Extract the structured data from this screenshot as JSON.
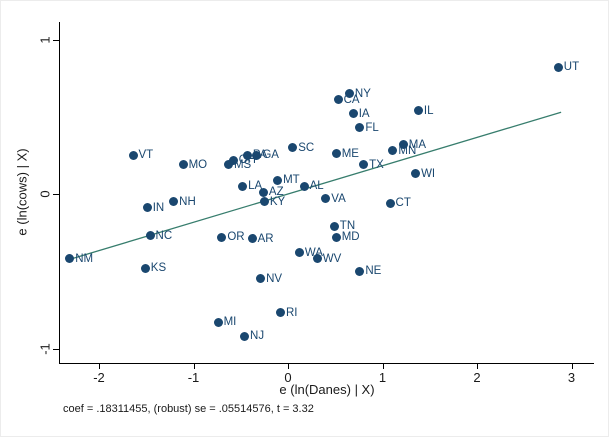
{
  "chart_data": {
    "type": "scatter",
    "title": "",
    "xlabel": "e (ln(Danes) | X)",
    "ylabel": "e (ln(cows) | X)",
    "note": "coef = .18311455, (robust) se = .05514576, t = 3.32",
    "xlim": [
      -2.42,
      3.26
    ],
    "ylim": [
      -1.09,
      1.15
    ],
    "x_ticks": [
      -2,
      -1,
      0,
      1,
      2,
      3
    ],
    "y_ticks": [
      -1,
      0,
      1
    ],
    "grid": false,
    "legend": "none",
    "marker_style": "filled-circle",
    "label_position": "right-of-marker",
    "colors": {
      "marker": "#1a476f",
      "marker_label": "#1a476f",
      "fit_line": "#377d6d",
      "axis": "#000000",
      "background": "#ffffff"
    },
    "fit_line": {
      "slope": 0.18311455,
      "intercept": 0,
      "x_start": -2.31,
      "x_end": 2.89,
      "coef_text": ".18311455",
      "robust_se_text": ".05514576",
      "t_text": "3.32"
    },
    "points": [
      {
        "label": "NM",
        "x": -2.31,
        "y": -0.42
      },
      {
        "label": "VT",
        "x": -1.64,
        "y": 0.25
      },
      {
        "label": "KS",
        "x": -1.51,
        "y": -0.48
      },
      {
        "label": "IN",
        "x": -1.49,
        "y": -0.09
      },
      {
        "label": "NC",
        "x": -1.46,
        "y": -0.27
      },
      {
        "label": "NH",
        "x": -1.21,
        "y": -0.05
      },
      {
        "label": "MO",
        "x": -1.11,
        "y": 0.19
      },
      {
        "label": "MI",
        "x": -0.74,
        "y": -0.83
      },
      {
        "label": "OR",
        "x": -0.7,
        "y": -0.28
      },
      {
        "label": "MS",
        "x": -0.63,
        "y": 0.19
      },
      {
        "label": "OH",
        "x": -0.58,
        "y": 0.22
      },
      {
        "label": "LA",
        "x": -0.48,
        "y": 0.05
      },
      {
        "label": "NJ",
        "x": -0.46,
        "y": -0.92
      },
      {
        "label": "PA",
        "x": -0.43,
        "y": 0.25
      },
      {
        "label": "AR",
        "x": -0.38,
        "y": -0.29
      },
      {
        "label": "GA",
        "x": -0.33,
        "y": 0.25
      },
      {
        "label": "NV",
        "x": -0.29,
        "y": -0.55
      },
      {
        "label": "AZ",
        "x": -0.26,
        "y": 0.01
      },
      {
        "label": "KY",
        "x": -0.25,
        "y": -0.05
      },
      {
        "label": "MT",
        "x": -0.11,
        "y": 0.09
      },
      {
        "label": "RI",
        "x": -0.08,
        "y": -0.77
      },
      {
        "label": "SC",
        "x": 0.05,
        "y": 0.3
      },
      {
        "label": "WA",
        "x": 0.12,
        "y": -0.38
      },
      {
        "label": "AL",
        "x": 0.17,
        "y": 0.05
      },
      {
        "label": "WV",
        "x": 0.31,
        "y": -0.42
      },
      {
        "label": "VA",
        "x": 0.4,
        "y": -0.03
      },
      {
        "label": "TN",
        "x": 0.49,
        "y": -0.21
      },
      {
        "label": "ME",
        "x": 0.51,
        "y": 0.26
      },
      {
        "label": "MD",
        "x": 0.51,
        "y": -0.28
      },
      {
        "label": "CA",
        "x": 0.53,
        "y": 0.61
      },
      {
        "label": "NY",
        "x": 0.65,
        "y": 0.65
      },
      {
        "label": "IA",
        "x": 0.69,
        "y": 0.52
      },
      {
        "label": "FL",
        "x": 0.76,
        "y": 0.43
      },
      {
        "label": "NE",
        "x": 0.76,
        "y": -0.5
      },
      {
        "label": "TX",
        "x": 0.8,
        "y": 0.19
      },
      {
        "label": "CT",
        "x": 1.08,
        "y": -0.06
      },
      {
        "label": "MN",
        "x": 1.11,
        "y": 0.28
      },
      {
        "label": "MA",
        "x": 1.22,
        "y": 0.32
      },
      {
        "label": "WI",
        "x": 1.35,
        "y": 0.13
      },
      {
        "label": "IL",
        "x": 1.38,
        "y": 0.54
      },
      {
        "label": "UT",
        "x": 2.86,
        "y": 0.82
      }
    ]
  }
}
